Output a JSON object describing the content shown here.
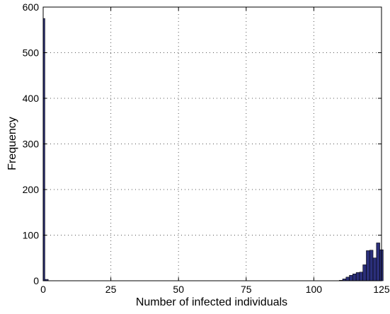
{
  "chart_data": {
    "type": "bar",
    "title": "",
    "xlabel": "Number of infected individuals",
    "ylabel": "Frequency",
    "xlim": [
      0,
      125
    ],
    "ylim": [
      0,
      600
    ],
    "xticks": [
      0,
      25,
      50,
      75,
      100,
      125
    ],
    "yticks": [
      0,
      100,
      200,
      300,
      400,
      500,
      600
    ],
    "grid": true,
    "grid_style": "dotted",
    "bar_color": "#2b2f7a",
    "bar_edge_color": "#000000",
    "bin_width": 1.25,
    "bins": [
      {
        "x": 0,
        "count": 575
      },
      {
        "x": 1.25,
        "count": 3
      },
      {
        "x": 110,
        "count": 1
      },
      {
        "x": 111.25,
        "count": 4
      },
      {
        "x": 112.5,
        "count": 8
      },
      {
        "x": 113.75,
        "count": 12
      },
      {
        "x": 115,
        "count": 15
      },
      {
        "x": 116.25,
        "count": 18
      },
      {
        "x": 117.5,
        "count": 19
      },
      {
        "x": 118.75,
        "count": 35
      },
      {
        "x": 120,
        "count": 66
      },
      {
        "x": 121.25,
        "count": 67
      },
      {
        "x": 122.5,
        "count": 50
      },
      {
        "x": 123.75,
        "count": 83
      },
      {
        "x": 125,
        "count": 68
      }
    ]
  }
}
